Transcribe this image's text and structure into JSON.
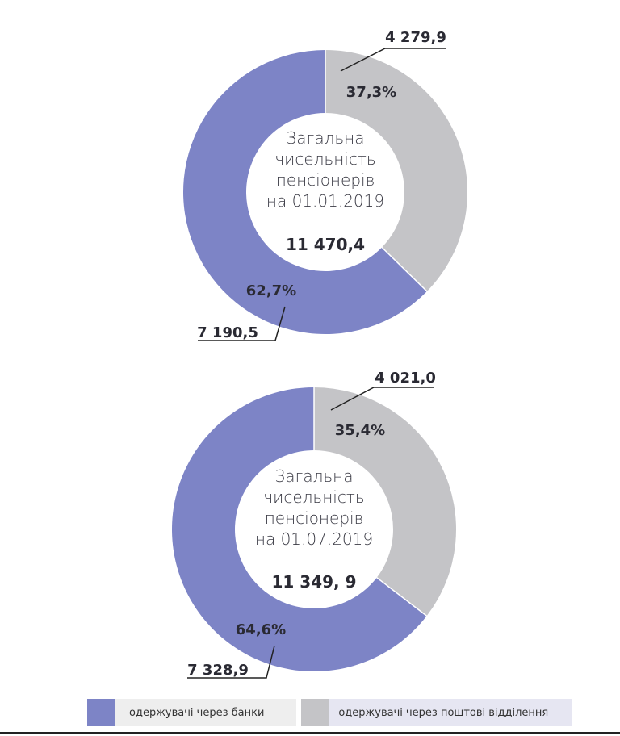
{
  "colors": {
    "banks": "#7d84c6",
    "post": "#c4c4c7"
  },
  "legend": {
    "banks_label": "одержувачі через банки",
    "post_label": "одержувачі через поштові відділення"
  },
  "chart_data": [
    {
      "type": "pie",
      "subtype": "donut",
      "center_text": [
        "Загальна",
        "чисельність",
        "пенсіонерів",
        "на 01.01.2019"
      ],
      "total_label": "11 470,4",
      "total": 11470.4,
      "series": [
        {
          "category": "banks",
          "value": 7190.5,
          "value_label": "7 190,5",
          "percent": 62.7,
          "percent_label": "62,7%"
        },
        {
          "category": "post",
          "value": 4279.9,
          "value_label": "4 279,9",
          "percent": 37.3,
          "percent_label": "37,3%"
        }
      ]
    },
    {
      "type": "pie",
      "subtype": "donut",
      "center_text": [
        "Загальна",
        "чисельність",
        "пенсіонерів",
        "на 01.07.2019"
      ],
      "total_label": "11 349, 9",
      "total": 11349.9,
      "series": [
        {
          "category": "banks",
          "value": 7328.9,
          "value_label": "7 328,9",
          "percent": 64.6,
          "percent_label": "64,6%"
        },
        {
          "category": "post",
          "value": 4021.0,
          "value_label": "4 021,0",
          "percent": 35.4,
          "percent_label": "35,4%"
        }
      ]
    }
  ]
}
